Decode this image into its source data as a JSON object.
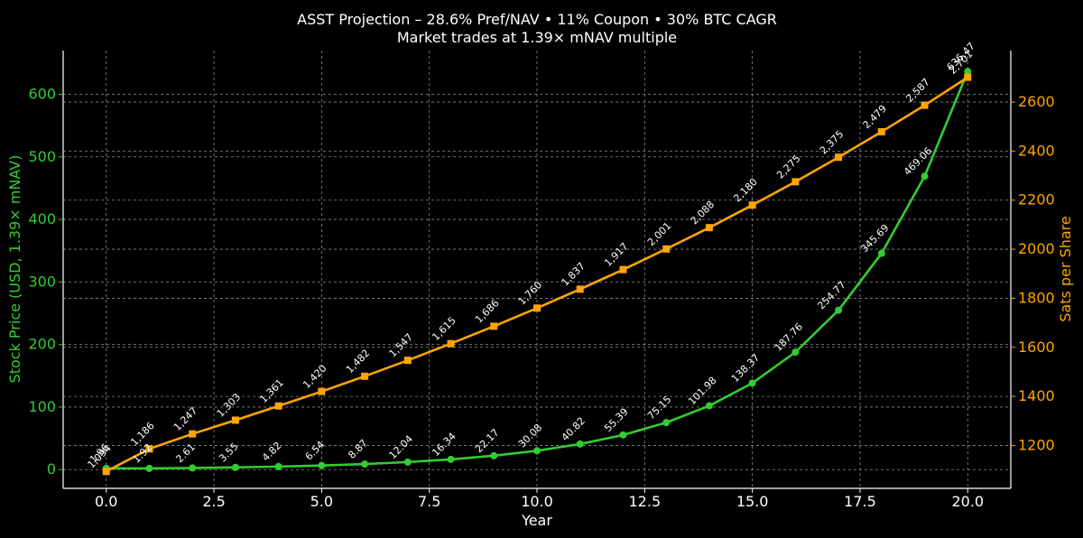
{
  "chart_data": {
    "type": "line",
    "title": "ASST Projection – 28.6% Pref/NAV • 11% Coupon • 30% BTC CAGR",
    "subtitle": "Market trades at 1.39× mNAV multiple",
    "xlabel": "Year",
    "ylabel_left": "Stock Price (USD, 1.39× mNAV)",
    "ylabel_right": "Sats per Share",
    "xlim": [
      -1,
      21
    ],
    "ylim_left": [
      -30,
      670
    ],
    "ylim_right": [
      1025,
      2810
    ],
    "x_ticks": [
      0,
      2.5,
      5,
      7.5,
      10,
      12.5,
      15,
      17.5,
      20
    ],
    "x_tick_labels": [
      "0.0",
      "2.5",
      "5.0",
      "7.5",
      "10.0",
      "12.5",
      "15.0",
      "17.5",
      "20.0"
    ],
    "y_ticks_left": [
      0,
      100,
      200,
      300,
      400,
      500,
      600
    ],
    "y_tick_labels_left": [
      "0",
      "100",
      "200",
      "300",
      "400",
      "500",
      "600"
    ],
    "y_ticks_right": [
      1200,
      1400,
      1600,
      1800,
      2000,
      2200,
      2400,
      2600
    ],
    "y_tick_labels_right": [
      "1200",
      "1400",
      "1600",
      "1800",
      "2000",
      "2200",
      "2400",
      "2600"
    ],
    "grid": true,
    "x": [
      0,
      1,
      2,
      3,
      4,
      5,
      6,
      7,
      8,
      9,
      10,
      11,
      12,
      13,
      14,
      15,
      16,
      17,
      18,
      19,
      20
    ],
    "series": [
      {
        "axis": "left",
        "color": "#33cc33",
        "marker": "circle",
        "values": [
          1.96,
          1.92,
          2.61,
          3.55,
          4.82,
          6.54,
          8.87,
          12.04,
          16.34,
          22.17,
          30.08,
          40.82,
          55.39,
          75.15,
          101.98,
          138.37,
          187.76,
          254.77,
          345.69,
          469.06,
          636.47
        ],
        "labels": [
          "1.96",
          "1.92",
          "2.61",
          "3.55",
          "4.82",
          "6.54",
          "8.87",
          "12.04",
          "16.34",
          "22.17",
          "30.08",
          "40.82",
          "55.39",
          "75.15",
          "101.98",
          "138.37",
          "187.76",
          "254.77",
          "345.69",
          "469.06",
          "636.47"
        ]
      },
      {
        "axis": "right",
        "color": "#ffa500",
        "marker": "square",
        "values": [
          1094,
          1186,
          1247,
          1303,
          1361,
          1420,
          1482,
          1547,
          1615,
          1686,
          1760,
          1837,
          1917,
          2001,
          2088,
          2180,
          2275,
          2375,
          2479,
          2587,
          2701
        ],
        "labels": [
          "1,094",
          "1,186",
          "1,247",
          "1,303",
          "1,361",
          "1,420",
          "1,482",
          "1,547",
          "1,615",
          "1,686",
          "1,760",
          "1,837",
          "1,917",
          "2,001",
          "2,088",
          "2,180",
          "2,275",
          "2,375",
          "2,479",
          "2,587",
          "2,701"
        ]
      }
    ],
    "colors": {
      "background": "#000000",
      "text": "#ffffff",
      "left_axis": "#33cc33",
      "right_axis": "#ffa500",
      "grid": "#8a8a8a"
    }
  }
}
